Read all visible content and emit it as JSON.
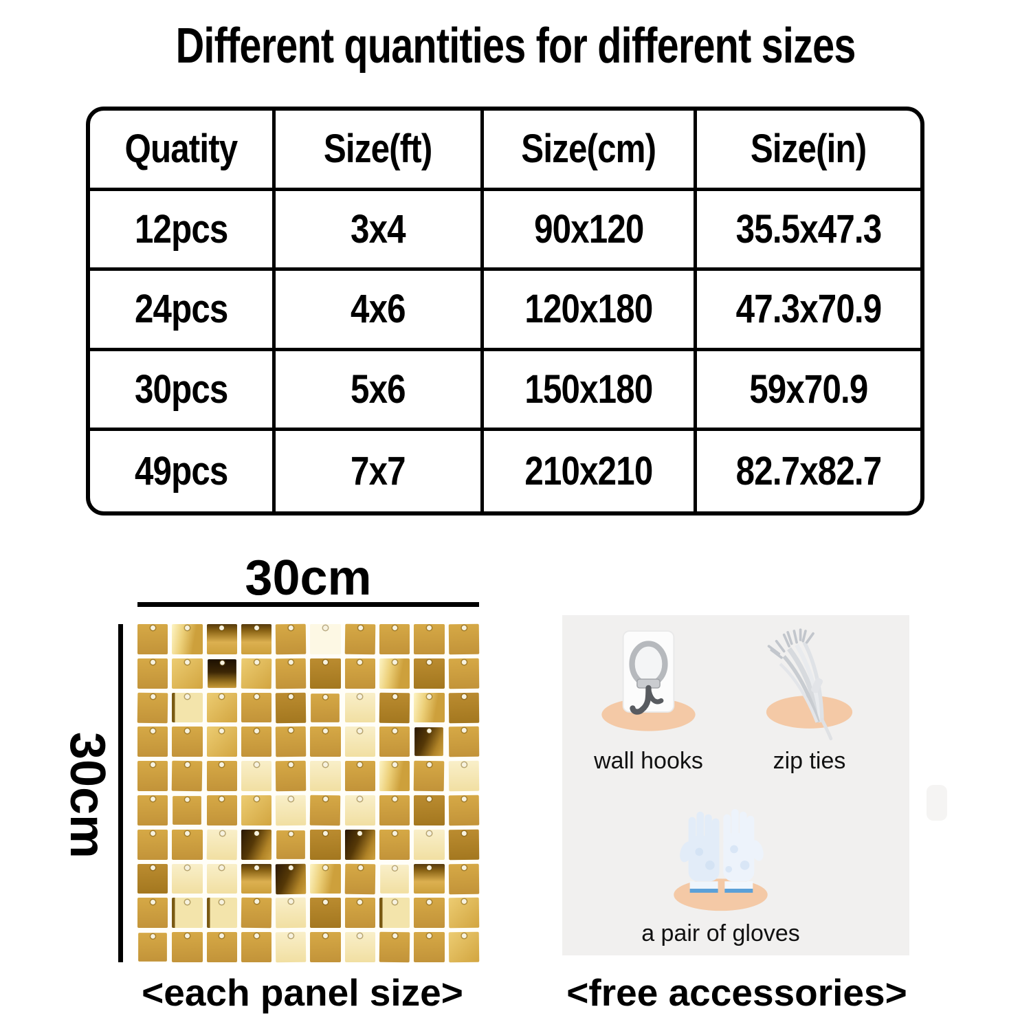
{
  "title": {
    "text": "Different quantities for different sizes"
  },
  "size_table": {
    "headers": [
      "Quatity",
      "Size(ft)",
      "Size(cm)",
      "Size(in)"
    ],
    "rows": [
      [
        "12pcs",
        "3x4",
        "90x120",
        "35.5x47.3"
      ],
      [
        "24pcs",
        "4x6",
        "120x180",
        "47.3x70.9"
      ],
      [
        "30pcs",
        "5x6",
        "150x180",
        "59x70.9"
      ],
      [
        "49pcs",
        "7x7",
        "210x210",
        "82.7x82.7"
      ]
    ]
  },
  "panel": {
    "width_label": "30cm",
    "height_label": "30cm",
    "caption": "<each panel size>",
    "grid": {
      "cols": 10,
      "rows": 10,
      "pattern": [
        "mhssmPmmmm",
        "mbDbmkmhkm",
        "mlbmkmpkhk",
        "mmbmmmpmdm",
        "mmmpmpmhmp",
        "mmmbpmpmkm",
        "mmpdmkdmpk",
        "kppsdhmpsm",
        "mllmpkmlmb",
        "mmmmpmpmmb"
      ],
      "palette": {
        "gold_medium": "#cda03c",
        "gold_dark": "#8a6315",
        "gold_bright": "#eccc72",
        "pale_cream": "#f9efc9",
        "reflection_dark": "#2a1804"
      }
    }
  },
  "accessories": {
    "caption": "<free accessories>",
    "items": [
      {
        "label": "wall hooks",
        "icon": "wall-hook-icon"
      },
      {
        "label": "zip ties",
        "icon": "zip-ties-icon"
      },
      {
        "label": "a pair of gloves",
        "icon": "gloves-icon"
      }
    ]
  },
  "theme": {
    "background": "#ffffff",
    "text_color": "#000000",
    "accessory_block_bg": "#f1f0ef",
    "peach_oval": "#f4c9a6",
    "glove_blue": "#e2ecf8",
    "glove_cuff_blue": "#5aa0d8",
    "metal_gray": "#585b60"
  }
}
